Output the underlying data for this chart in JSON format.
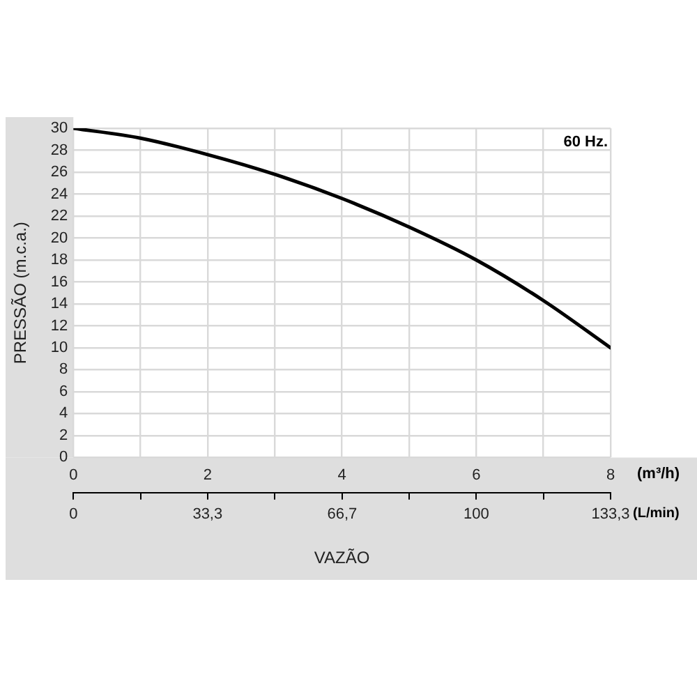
{
  "chart_data": {
    "type": "line",
    "ylabel": "PRESSÃO (m.c.a.)",
    "xlabel": "VAZÃO",
    "x2label": "(L/min)",
    "annotations": [
      "60 Hz.",
      "(m³/h)"
    ],
    "x": [
      0,
      1,
      2,
      3,
      4,
      5,
      6,
      7,
      8
    ],
    "series": [
      {
        "color": "#000000",
        "values": [
          30,
          29.1,
          27.6,
          25.8,
          23.6,
          21,
          18,
          14.3,
          10
        ]
      }
    ],
    "xlim": [
      0,
      8
    ],
    "xticks": [
      0,
      {
        "value": 1,
        "label": null
      },
      2,
      {
        "value": 3,
        "label": null
      },
      4,
      {
        "value": 5,
        "label": null
      },
      6,
      {
        "value": 7,
        "label": null
      },
      8
    ],
    "x2lim": [
      0,
      133.3
    ],
    "x2ticks": [
      0,
      {
        "value": 16.7,
        "label": null
      },
      {
        "value": 33.3,
        "label": "33,3"
      },
      {
        "value": 50,
        "label": null
      },
      {
        "value": 66.7,
        "label": "66,7"
      },
      {
        "value": 83.3,
        "label": null
      },
      100,
      {
        "value": 116.7,
        "label": null
      },
      {
        "value": 133.3,
        "label": "133,3"
      }
    ],
    "ylim": [
      0,
      30
    ],
    "yticks": [
      0,
      2,
      4,
      6,
      8,
      10,
      12,
      14,
      16,
      18,
      20,
      22,
      24,
      26,
      28,
      30
    ],
    "grid": true,
    "legend": false,
    "marker": "none",
    "line_style": "solid"
  }
}
